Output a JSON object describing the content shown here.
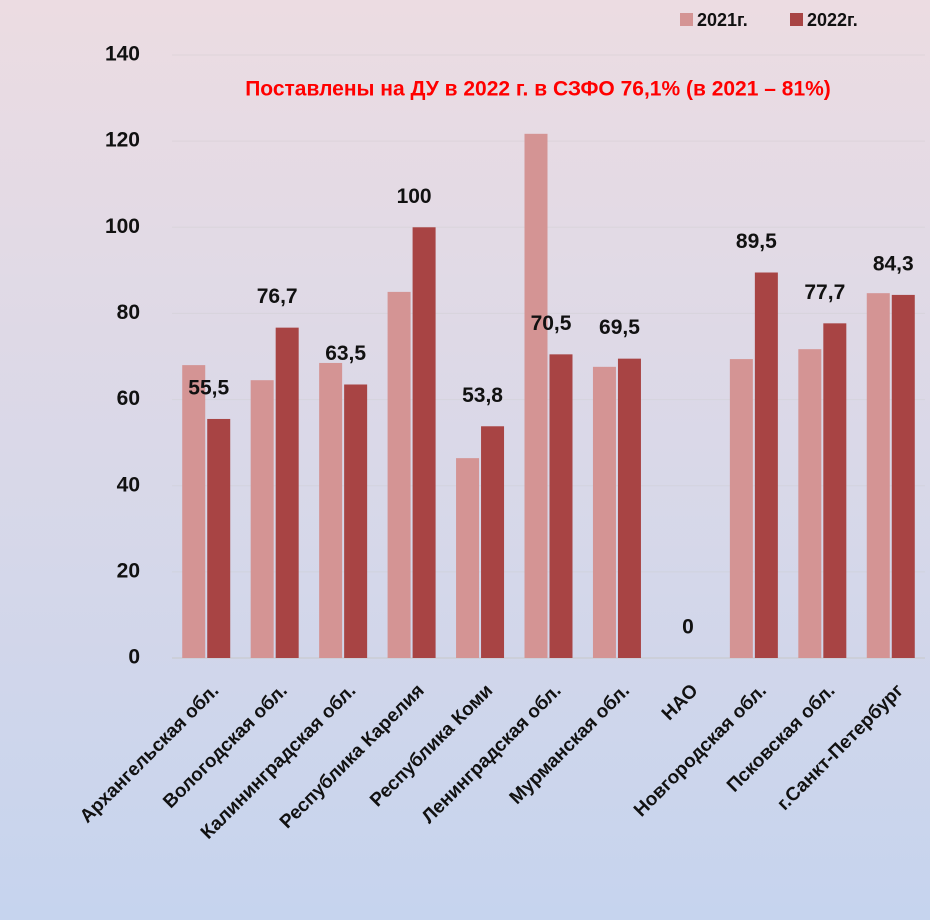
{
  "chart_data": {
    "type": "bar",
    "title": "Поставлены на ДУ в 2022 г. в СЗФО 76,1% (в 2021 – 81%)",
    "categories": [
      "Архангельская обл.",
      "Вологодская обл.",
      "Калининградская обл.",
      "Республика Карелия",
      "Республика Коми",
      "Ленинградская обл.",
      "Мурманская обл.",
      "НАО",
      "Новгородская обл.",
      "Псковская обл.",
      "г.Санкт-Петербург"
    ],
    "series": [
      {
        "name": "2021г.",
        "color": "#d49494",
        "values": [
          68,
          64.5,
          68.5,
          85,
          46.4,
          121.7,
          67.6,
          0,
          69.4,
          71.7,
          84.7
        ]
      },
      {
        "name": "2022г.",
        "color": "#a84444",
        "values": [
          55.5,
          76.7,
          63.5,
          100,
          53.8,
          70.5,
          69.5,
          0,
          89.5,
          77.7,
          84.3
        ],
        "value_labels": [
          "55,5",
          "76,7",
          "63,5",
          "100",
          "53,8",
          "70,5",
          "69,5",
          "0",
          "89,5",
          "77,7",
          "84,3"
        ]
      }
    ],
    "ylim": [
      0,
      140
    ],
    "yticks": [
      0,
      20,
      40,
      60,
      80,
      100,
      120,
      140
    ],
    "grid": true,
    "legend": "top-right"
  }
}
